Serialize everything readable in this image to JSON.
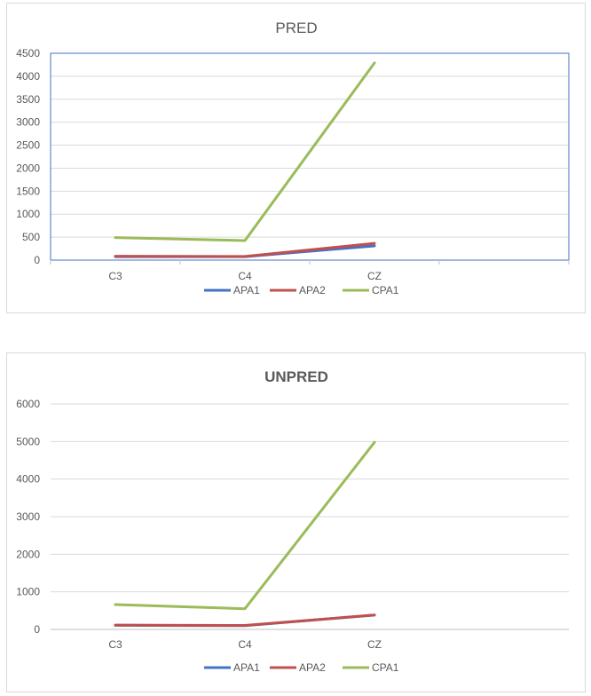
{
  "chart_data": [
    {
      "type": "line",
      "title": "PRED",
      "categories": [
        "C3",
        "C4",
        "CZ"
      ],
      "series": [
        {
          "name": "APA1",
          "values": [
            75,
            75,
            310
          ],
          "color": "#4472c4"
        },
        {
          "name": "APA2",
          "values": [
            85,
            80,
            365
          ],
          "color": "#c0504d"
        },
        {
          "name": "CPA1",
          "values": [
            490,
            425,
            4290
          ],
          "color": "#9bbb59"
        }
      ],
      "ylim": [
        0,
        4500
      ],
      "yticks": [
        "0",
        "500",
        "1000",
        "1500",
        "2000",
        "2500",
        "3000",
        "3500",
        "4000",
        "4500"
      ],
      "grid": true,
      "legend": "bottom"
    },
    {
      "type": "line",
      "title": "UNPRED",
      "categories": [
        "C3",
        "C4",
        "CZ"
      ],
      "series": [
        {
          "name": "APA1",
          "values": [
            110,
            100,
            380
          ],
          "color": "#4472c4"
        },
        {
          "name": "APA2",
          "values": [
            115,
            105,
            385
          ],
          "color": "#c0504d"
        },
        {
          "name": "CPA1",
          "values": [
            660,
            550,
            4980
          ],
          "color": "#9bbb59"
        }
      ],
      "ylim": [
        0,
        6000
      ],
      "yticks": [
        "0",
        "1000",
        "2000",
        "3000",
        "4000",
        "5000",
        "6000"
      ],
      "grid": true,
      "legend": "bottom"
    }
  ]
}
